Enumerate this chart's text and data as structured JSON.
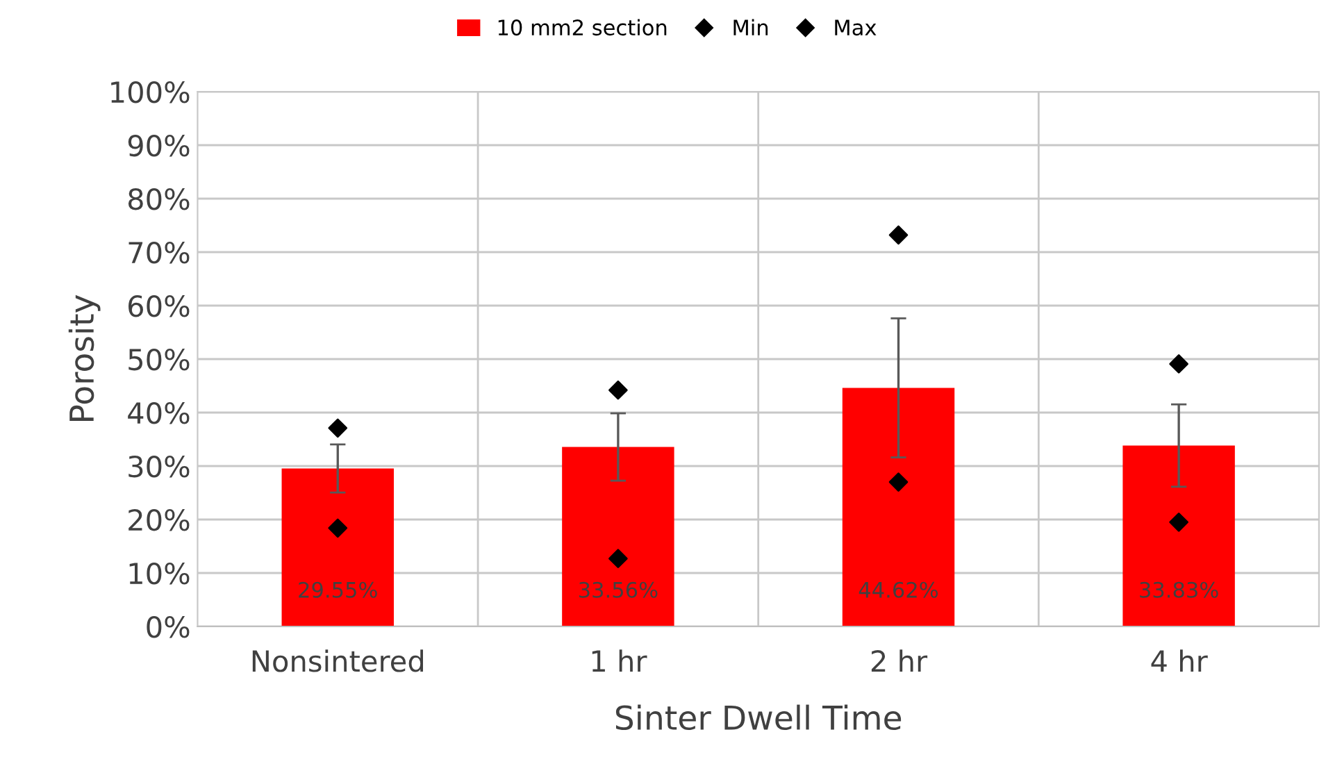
{
  "chart_data": {
    "type": "bar",
    "xlabel": "Sinter Dwell Time",
    "ylabel": "Porosity",
    "categories": [
      "Nonsintered",
      "1 hr",
      "2 hr",
      "4 hr"
    ],
    "series": [
      {
        "name": "10 mm2 section",
        "color": "#ff0000",
        "values": [
          29.55,
          33.56,
          44.62,
          33.83
        ],
        "errors": [
          4.5,
          6.3,
          13,
          7.7
        ],
        "value_labels": [
          "29.55%",
          "33.56%",
          "44.62%",
          "33.83%"
        ]
      },
      {
        "name": "Min",
        "type": "scatter",
        "color": "#000000",
        "values": [
          18.4,
          12.7,
          27.0,
          19.5
        ]
      },
      {
        "name": "Max",
        "type": "scatter",
        "color": "#000000",
        "values": [
          37.1,
          44.2,
          73.2,
          49.1
        ]
      }
    ],
    "ylim": [
      0,
      100
    ],
    "yticks": [
      {
        "value": 0,
        "label": "0%"
      },
      {
        "value": 10,
        "label": "10%"
      },
      {
        "value": 20,
        "label": "20%"
      },
      {
        "value": 30,
        "label": "30%"
      },
      {
        "value": 40,
        "label": "40%"
      },
      {
        "value": 50,
        "label": "50%"
      },
      {
        "value": 60,
        "label": "60%"
      },
      {
        "value": 70,
        "label": "70%"
      },
      {
        "value": 80,
        "label": "80%"
      },
      {
        "value": 90,
        "label": "90%"
      },
      {
        "value": 100,
        "label": "100%"
      }
    ],
    "grid": true,
    "legend": "top",
    "marker": "diamond"
  }
}
